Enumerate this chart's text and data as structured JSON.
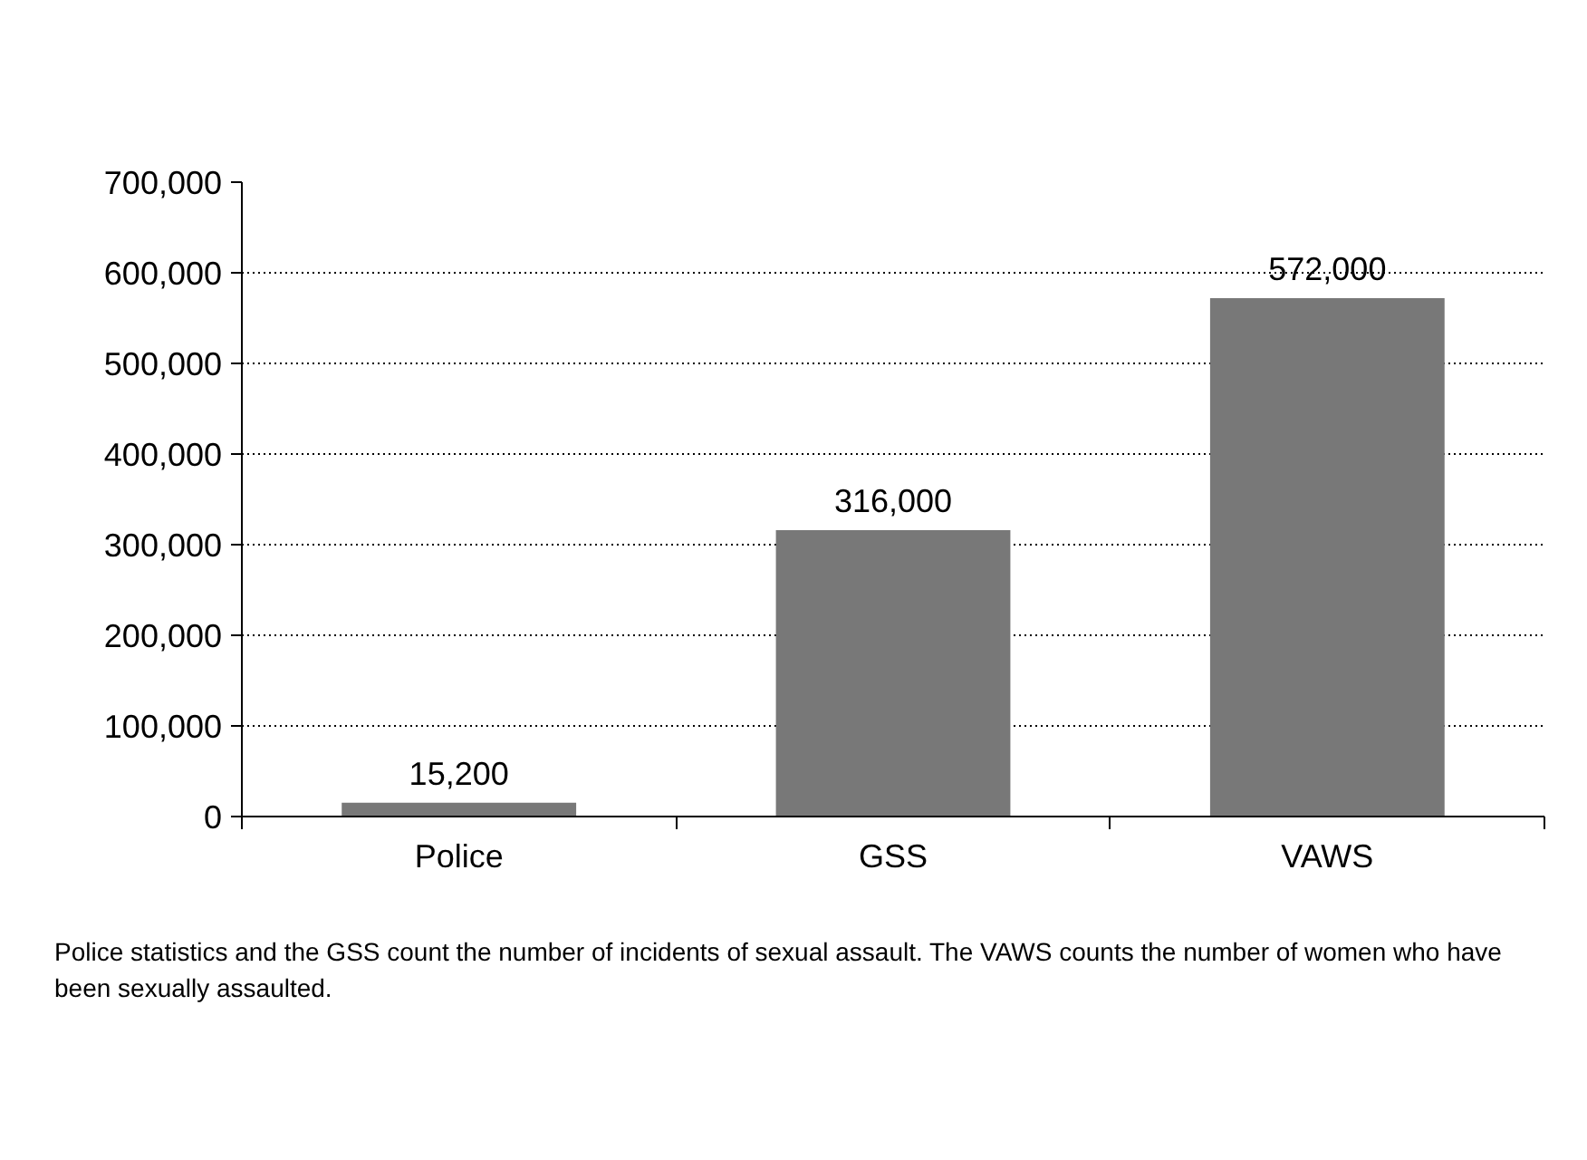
{
  "chart_data": {
    "type": "bar",
    "categories": [
      "Police",
      "GSS",
      "VAWS"
    ],
    "values": [
      15200,
      316000,
      572000
    ],
    "color": "#787878",
    "ylim": [
      0,
      700000
    ],
    "yticks": [
      {
        "value": 0,
        "label": "0"
      },
      {
        "value": 100000,
        "label": "100,000"
      },
      {
        "value": 200000,
        "label": "200,000"
      },
      {
        "value": 300000,
        "label": "300,000"
      },
      {
        "value": 400000,
        "label": "400,000"
      },
      {
        "value": 500000,
        "label": "500,000"
      },
      {
        "value": 600000,
        "label": "600,000"
      },
      {
        "value": 700000,
        "label": "700,000"
      }
    ],
    "value_labels": [
      "15,200",
      "316,000",
      "572,000"
    ],
    "grid": "y",
    "annotations": [
      "Police statistics and the GSS count the number of incidents of sexual assault. The VAWS counts the number of women who have been sexually assaulted."
    ]
  }
}
